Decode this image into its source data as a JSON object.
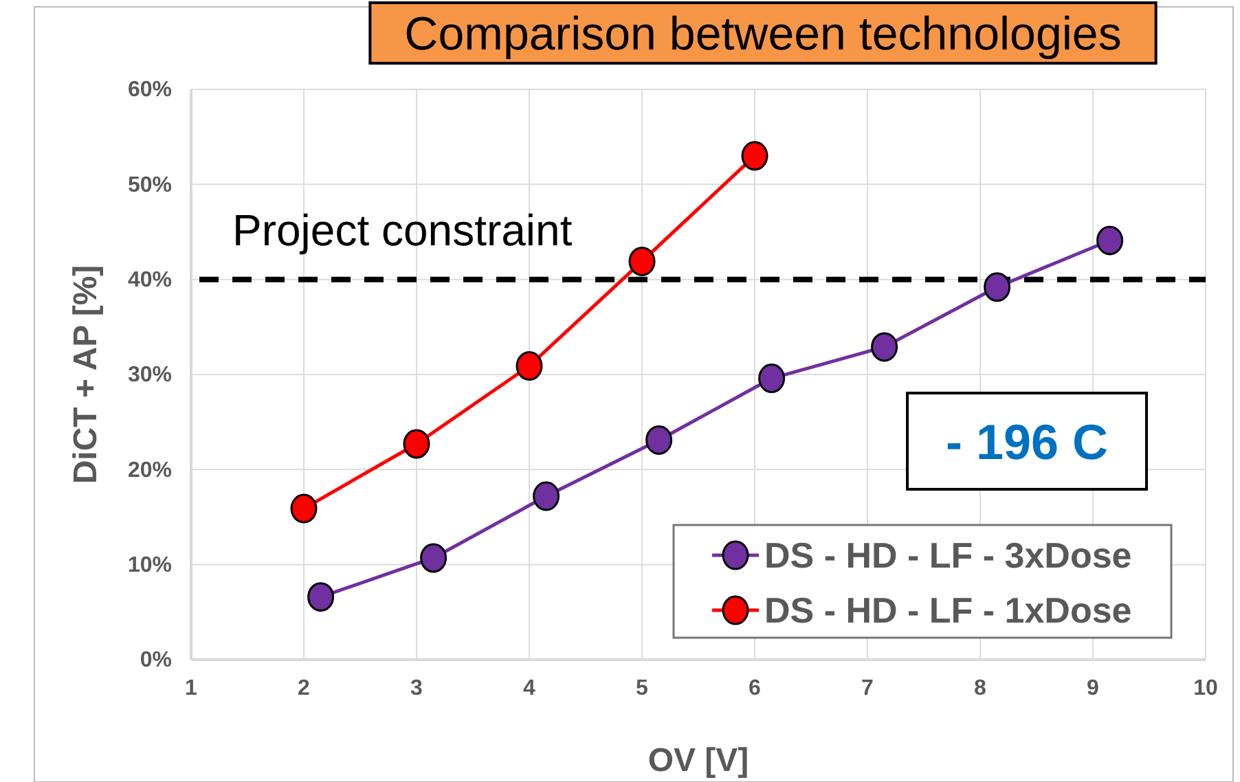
{
  "chart_data": {
    "type": "line",
    "title": "Comparison between technologies",
    "xlabel": "OV [V]",
    "ylabel": "DiCT + AP [%]",
    "xlim": [
      1,
      10
    ],
    "xticks": [
      1,
      2,
      3,
      4,
      5,
      6,
      7,
      8,
      9,
      10
    ],
    "ylim": [
      0,
      60
    ],
    "yticks": [
      {
        "value": 0,
        "label": "0%"
      },
      {
        "value": 10,
        "label": "10%"
      },
      {
        "value": 20,
        "label": "20%"
      },
      {
        "value": 30,
        "label": "30%"
      },
      {
        "value": 40,
        "label": "40%"
      },
      {
        "value": 50,
        "label": "50%"
      },
      {
        "value": 60,
        "label": "60%"
      }
    ],
    "grid": true,
    "legend": "bottom right",
    "marker": "circle",
    "line_style": "solid",
    "series": [
      {
        "name": "DS - HD - LF - 3xDose",
        "color": "#7030a0",
        "x": [
          2.15,
          3.15,
          4.15,
          5.15,
          6.15,
          7.15,
          8.15,
          9.15
        ],
        "values": [
          6.6,
          10.7,
          17.2,
          23.1,
          29.6,
          32.9,
          39.2,
          44.1
        ]
      },
      {
        "name": "DS - HD - LF - 1xDose",
        "color": "#ff0000",
        "x": [
          2,
          3,
          4,
          5,
          6
        ],
        "values": [
          15.9,
          22.7,
          30.9,
          41.9,
          53.0
        ]
      }
    ],
    "ref_lines": [
      {
        "axis": "y",
        "value": 40,
        "label": "Project constraint",
        "color": "#000000",
        "line_style": "dashed"
      }
    ],
    "annotations": [
      "- 196 C"
    ]
  }
}
